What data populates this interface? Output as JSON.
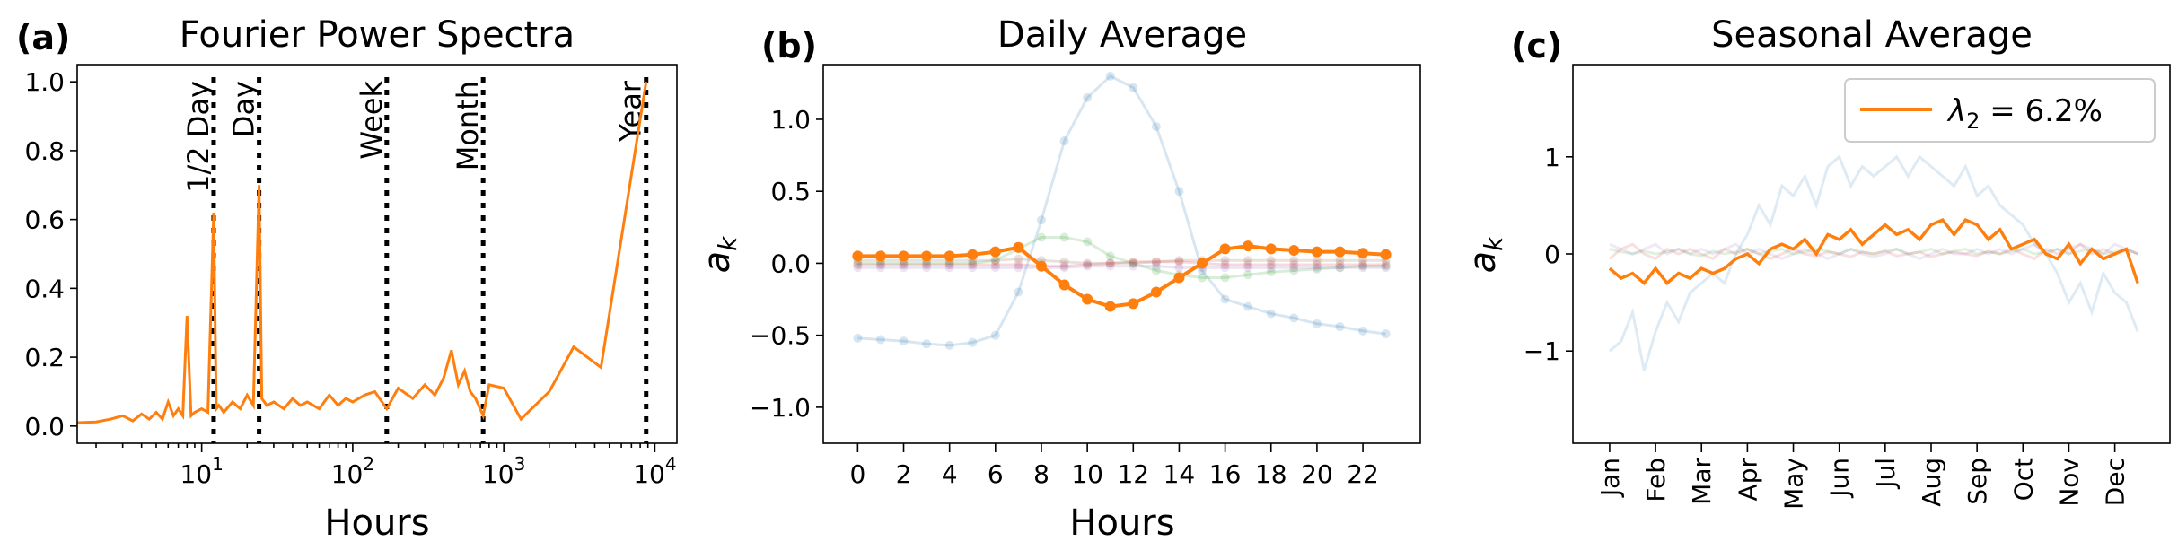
{
  "colors": {
    "highlight": "#ff7f0e",
    "faded": [
      "#1f77b4",
      "#2ca02c",
      "#d62728",
      "#9467bd",
      "#8c564b",
      "#e377c2",
      "#7f7f7f"
    ]
  },
  "panels": [
    {
      "letter": "(a)",
      "title": "Fourier Power Spectra"
    },
    {
      "letter": "(b)",
      "title": "Daily Average"
    },
    {
      "letter": "(c)",
      "title": "Seasonal Average"
    }
  ],
  "chart_data": [
    {
      "type": "line",
      "title": "Fourier Power Spectra",
      "xlabel": "Hours",
      "ylabel": "",
      "xscale": "log",
      "xlim": [
        1.5,
        14000
      ],
      "ylim": [
        -0.05,
        1.05
      ],
      "xticks": [
        {
          "value": 10,
          "base": "10",
          "exp": "1"
        },
        {
          "value": 100,
          "base": "10",
          "exp": "2"
        },
        {
          "value": 1000,
          "base": "10",
          "exp": "3"
        },
        {
          "value": 10000,
          "base": "10",
          "exp": "4"
        }
      ],
      "yticks": [
        "0.0",
        "0.2",
        "0.4",
        "0.6",
        "0.8",
        "1.0"
      ],
      "vlines": [
        {
          "x": 12,
          "label": "1/2 Day"
        },
        {
          "x": 24,
          "label": "Day"
        },
        {
          "x": 168,
          "label": "Week"
        },
        {
          "x": 730,
          "label": "Month"
        },
        {
          "x": 8760,
          "label": "Year"
        }
      ],
      "series": [
        {
          "x": [
            1.5,
            2,
            2.5,
            3,
            3.5,
            4,
            4.5,
            5,
            5.5,
            6,
            6.5,
            7,
            7.5,
            8,
            8.5,
            9,
            10,
            11,
            12,
            12.5,
            13,
            14,
            16,
            18,
            20,
            22,
            24,
            25,
            27,
            30,
            35,
            40,
            45,
            50,
            60,
            70,
            80,
            90,
            100,
            120,
            140,
            168,
            200,
            250,
            300,
            350,
            400,
            450,
            500,
            550,
            600,
            650,
            730,
            800,
            1000,
            1300,
            2000,
            2900,
            4400,
            8760
          ],
          "y": [
            0.01,
            0.012,
            0.02,
            0.03,
            0.015,
            0.035,
            0.02,
            0.04,
            0.02,
            0.07,
            0.03,
            0.05,
            0.03,
            0.32,
            0.03,
            0.04,
            0.05,
            0.04,
            0.62,
            0.05,
            0.06,
            0.04,
            0.07,
            0.05,
            0.09,
            0.06,
            0.7,
            0.08,
            0.06,
            0.07,
            0.05,
            0.08,
            0.06,
            0.07,
            0.05,
            0.09,
            0.06,
            0.08,
            0.07,
            0.09,
            0.1,
            0.05,
            0.11,
            0.08,
            0.12,
            0.09,
            0.14,
            0.22,
            0.12,
            0.16,
            0.1,
            0.08,
            0.03,
            0.12,
            0.11,
            0.02,
            0.1,
            0.23,
            0.17,
            1.0
          ]
        }
      ]
    },
    {
      "type": "line",
      "title": "Daily Average",
      "xlabel": "Hours",
      "ylabel": "a_k",
      "xlim": [
        -1.5,
        24.5
      ],
      "ylim": [
        -1.25,
        1.38
      ],
      "xticks": [
        "0",
        "2",
        "4",
        "6",
        "8",
        "10",
        "12",
        "14",
        "16",
        "18",
        "20",
        "22"
      ],
      "yticks": [
        "1.0",
        "0.5",
        "0.0",
        "−0.5",
        "−1.0"
      ],
      "highlight": {
        "x": [
          0,
          1,
          2,
          3,
          4,
          5,
          6,
          7,
          8,
          9,
          10,
          11,
          12,
          13,
          14,
          15,
          16,
          17,
          18,
          19,
          20,
          21,
          22,
          23
        ],
        "y": [
          0.05,
          0.05,
          0.05,
          0.05,
          0.05,
          0.06,
          0.08,
          0.11,
          -0.02,
          -0.15,
          -0.25,
          -0.3,
          -0.28,
          -0.2,
          -0.1,
          0.0,
          0.1,
          0.12,
          0.1,
          0.09,
          0.08,
          0.08,
          0.07,
          0.06
        ]
      },
      "faded": [
        {
          "y": [
            -0.52,
            -0.53,
            -0.54,
            -0.56,
            -0.57,
            -0.55,
            -0.5,
            -0.2,
            0.3,
            0.85,
            1.15,
            1.3,
            1.22,
            0.95,
            0.5,
            -0.05,
            -0.25,
            -0.3,
            -0.35,
            -0.38,
            -0.42,
            -0.44,
            -0.47,
            -0.49
          ]
        },
        {
          "y": [
            0.0,
            0.0,
            0.0,
            0.0,
            0.0,
            0.0,
            0.02,
            0.1,
            0.18,
            0.18,
            0.15,
            0.05,
            0.0,
            -0.05,
            -0.08,
            -0.1,
            -0.1,
            -0.08,
            -0.06,
            -0.05,
            -0.04,
            -0.03,
            -0.02,
            -0.02
          ]
        },
        {
          "y": [
            -0.01,
            -0.01,
            -0.01,
            -0.01,
            -0.01,
            -0.01,
            -0.01,
            -0.01,
            -0.02,
            -0.02,
            -0.01,
            0.0,
            0.01,
            0.01,
            0.01,
            0.0,
            -0.01,
            -0.01,
            -0.01,
            -0.01,
            -0.01,
            -0.01,
            -0.01,
            -0.01
          ]
        },
        {
          "y": [
            -0.03,
            -0.03,
            -0.03,
            -0.03,
            -0.03,
            -0.03,
            -0.03,
            -0.03,
            -0.03,
            -0.03,
            -0.02,
            -0.02,
            -0.02,
            -0.02,
            -0.03,
            -0.03,
            -0.03,
            -0.03,
            -0.03,
            -0.03,
            -0.03,
            -0.03,
            -0.03,
            -0.03
          ]
        },
        {
          "y": [
            0.02,
            0.02,
            0.02,
            0.02,
            0.02,
            0.02,
            0.02,
            0.03,
            0.02,
            0.01,
            0.0,
            0.0,
            0.0,
            0.01,
            0.02,
            0.02,
            0.02,
            0.02,
            0.02,
            0.02,
            0.02,
            0.02,
            0.02,
            0.02
          ]
        }
      ]
    },
    {
      "type": "line",
      "title": "Seasonal Average",
      "xlabel": "",
      "ylabel": "a_k",
      "xlim": [
        -0.8,
        12.2
      ],
      "ylim": [
        -1.95,
        1.95
      ],
      "xticks": [
        "Jan",
        "Feb",
        "Mar",
        "Apr",
        "May",
        "Jun",
        "Jul",
        "Aug",
        "Sep",
        "Oct",
        "Nov",
        "Dec"
      ],
      "yticks": [
        "1",
        "0",
        "−1"
      ],
      "legend": {
        "position": "upper right",
        "label_prefix": "λ",
        "label_sub": "2",
        "label_suffix": " = 6.2%"
      },
      "highlight": {
        "x": [
          0.0,
          0.25,
          0.5,
          0.75,
          1.0,
          1.25,
          1.5,
          1.75,
          2.0,
          2.25,
          2.5,
          2.75,
          3.0,
          3.25,
          3.5,
          3.75,
          4.0,
          4.25,
          4.5,
          4.75,
          5.0,
          5.25,
          5.5,
          5.75,
          6.0,
          6.25,
          6.5,
          6.75,
          7.0,
          7.25,
          7.5,
          7.75,
          8.0,
          8.25,
          8.5,
          8.75,
          9.0,
          9.25,
          9.5,
          9.75,
          10.0,
          10.25,
          10.5,
          10.75,
          11.0,
          11.25,
          11.5
        ],
        "y": [
          -0.15,
          -0.25,
          -0.2,
          -0.3,
          -0.15,
          -0.3,
          -0.2,
          -0.25,
          -0.15,
          -0.2,
          -0.15,
          -0.05,
          0.0,
          -0.1,
          0.05,
          0.1,
          0.05,
          0.15,
          0.0,
          0.2,
          0.15,
          0.25,
          0.1,
          0.2,
          0.3,
          0.2,
          0.25,
          0.15,
          0.3,
          0.35,
          0.2,
          0.35,
          0.3,
          0.15,
          0.25,
          0.05,
          0.1,
          0.15,
          0.0,
          -0.05,
          0.1,
          -0.1,
          0.05,
          -0.05,
          0.0,
          0.05,
          -0.3
        ]
      },
      "faded": [
        {
          "y": [
            -1.0,
            -0.9,
            -0.6,
            -1.2,
            -0.8,
            -0.5,
            -0.7,
            -0.4,
            -0.3,
            -0.2,
            -0.3,
            0.0,
            0.2,
            0.5,
            0.3,
            0.7,
            0.6,
            0.8,
            0.5,
            0.9,
            1.0,
            0.7,
            0.9,
            0.8,
            0.9,
            1.0,
            0.8,
            1.0,
            0.9,
            0.8,
            0.7,
            0.9,
            0.6,
            0.7,
            0.5,
            0.4,
            0.3,
            0.1,
            0.0,
            -0.2,
            -0.5,
            -0.3,
            -0.6,
            -0.2,
            -0.4,
            -0.5,
            -0.8
          ]
        },
        {
          "y": [
            0.05,
            0.02,
            0.0,
            0.03,
            0.0,
            0.02,
            0.05,
            0.0,
            -0.02,
            0.03,
            0.0,
            0.02,
            0.05,
            0.0,
            0.03,
            0.05,
            0.0,
            0.02,
            0.05,
            0.03,
            0.0,
            0.05,
            0.02,
            0.0,
            0.03,
            0.05,
            0.0,
            0.02,
            0.05,
            0.0,
            0.03,
            0.05,
            0.0,
            0.02,
            0.0,
            0.03,
            0.05,
            0.0,
            0.02,
            0.05,
            0.0,
            0.03,
            0.05,
            0.0,
            0.02,
            0.05,
            0.0
          ]
        },
        {
          "y": [
            -0.05,
            0.05,
            0.1,
            0.0,
            -0.05,
            0.05,
            0.0,
            0.05,
            0.0,
            -0.05,
            0.05,
            0.0,
            0.05,
            0.0,
            -0.05,
            0.0,
            0.05,
            0.0,
            -0.02,
            0.02,
            0.0,
            -0.03,
            0.02,
            0.0,
            0.03,
            -0.02,
            0.0,
            0.02,
            -0.03,
            0.0,
            0.02,
            0.0,
            -0.02,
            0.03,
            0.0,
            0.05,
            0.0,
            -0.05,
            0.05,
            0.0,
            0.05,
            0.1,
            0.0,
            0.05,
            0.0,
            0.05,
            0.0
          ]
        },
        {
          "y": [
            0.1,
            0.05,
            0.0,
            0.05,
            0.1,
            0.0,
            0.05,
            0.0,
            0.05,
            0.0,
            0.05,
            0.1,
            0.0,
            0.05,
            0.0,
            -0.05,
            0.0,
            0.05,
            0.0,
            -0.05,
            0.0,
            0.05,
            0.0,
            -0.03,
            0.0,
            0.05,
            0.0,
            -0.05,
            0.0,
            0.05,
            0.0,
            0.0,
            0.05,
            0.0,
            0.05,
            0.0,
            0.05,
            0.1,
            0.0,
            0.05,
            0.0,
            0.1,
            0.05,
            0.0,
            0.1,
            0.05,
            0.0
          ]
        }
      ]
    }
  ]
}
